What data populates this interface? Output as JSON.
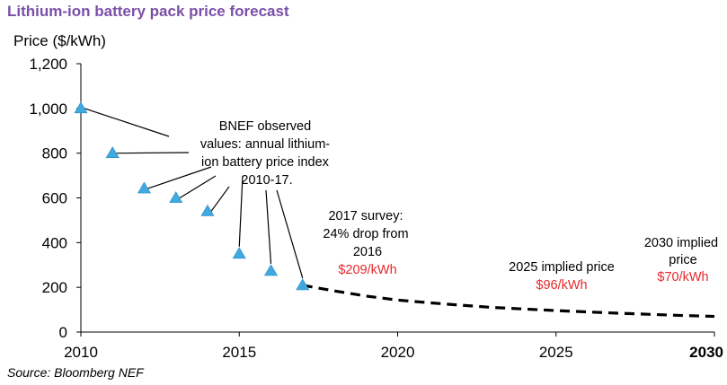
{
  "colors": {
    "title": "#7b4fa8",
    "marker": "#3fa9e0",
    "highlight": "#e8282b",
    "axis": "#000000",
    "forecast_line": "#000000"
  },
  "chart_data": {
    "type": "scatter",
    "title": "Lithium-ion battery pack price forecast",
    "ylabel": "Price ($/kWh)",
    "xlabel": "",
    "xlim": [
      2010,
      2030
    ],
    "ylim": [
      0,
      1200
    ],
    "grid": false,
    "x_ticks": [
      "2010",
      "2015",
      "2020",
      "2025",
      "2030"
    ],
    "y_ticks": [
      "0",
      "200",
      "400",
      "600",
      "800",
      "1,000",
      "1,200"
    ],
    "series": [
      {
        "marker": "triangle",
        "x": [
          2010,
          2011,
          2012,
          2013,
          2014,
          2015,
          2016,
          2017
        ],
        "y": [
          1000,
          800,
          642,
          599,
          540,
          350,
          273,
          209
        ]
      },
      {
        "style": "dashed",
        "x": [
          2017,
          2018,
          2019,
          2020,
          2021,
          2022,
          2023,
          2024,
          2025,
          2026,
          2027,
          2028,
          2029,
          2030
        ],
        "y": [
          209,
          184,
          161,
          143,
          131,
          120,
          110,
          103,
          96,
          90,
          84,
          79,
          74,
          70
        ]
      }
    ],
    "annotations": {
      "observed": [
        "BNEF observed",
        "values: annual lithium-",
        "ion battery price index",
        "2010-17."
      ],
      "survey": [
        "2017 survey:",
        "24% drop from",
        "2016"
      ],
      "survey_price": "$209/kWh",
      "implied_2025": "2025 implied price",
      "implied_2025_price": "$96/kWh",
      "implied_2030": [
        "2030 implied",
        "price"
      ],
      "implied_2030_price": "$70/kWh"
    },
    "source": "Source: Bloomberg NEF"
  }
}
